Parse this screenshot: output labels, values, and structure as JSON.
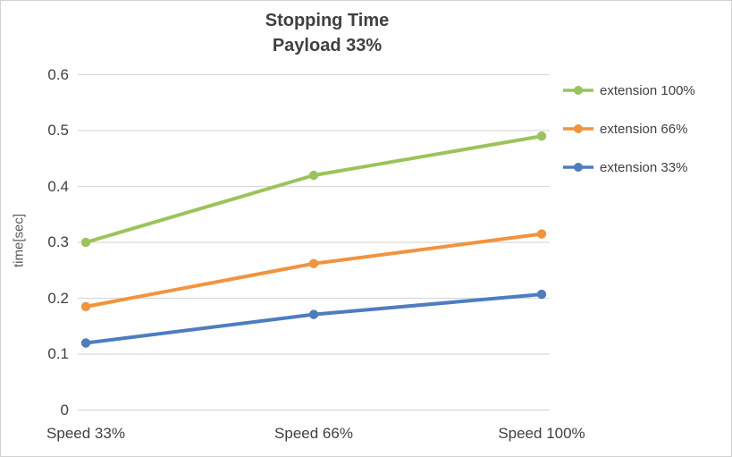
{
  "chart_data": {
    "type": "line",
    "title": "Stopping Time",
    "subtitle": "Payload 33%",
    "ylabel": "time[sec]",
    "xlabel": "",
    "categories": [
      "Speed 33%",
      "Speed 66%",
      "Speed 100%"
    ],
    "series": [
      {
        "name": "extension 100%",
        "color": "#9CC35B",
        "values": [
          0.3,
          0.42,
          0.49
        ]
      },
      {
        "name": "extension 66%",
        "color": "#F2933E",
        "values": [
          0.185,
          0.262,
          0.315
        ]
      },
      {
        "name": "extension 33%",
        "color": "#4E7DBE",
        "values": [
          0.12,
          0.171,
          0.207
        ]
      }
    ],
    "ylim": [
      0,
      0.6
    ],
    "ytick_step": 0.1,
    "yticks": [
      "0",
      "0.1",
      "0.2",
      "0.3",
      "0.4",
      "0.5",
      "0.6"
    ],
    "grid": true,
    "gridline_color": "#d9d9d9",
    "legend_position": "right",
    "title_color": "#404040",
    "background": "#ffffff"
  }
}
